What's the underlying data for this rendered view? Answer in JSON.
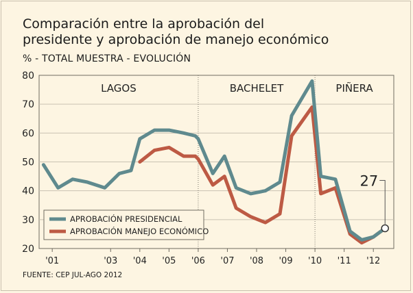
{
  "title_line1": "Comparación entre la aprobación del",
  "title_line2": "presidente y aprobación de manejo económico",
  "subtitle": "% - TOTAL MUESTRA - EVOLUCIÓN",
  "source": "FUENTE: CEP JUL-AGO 2012",
  "colors": {
    "presidential": "#5f8a8e",
    "economic": "#bd5a44",
    "background": "#fdf5e2"
  },
  "chart_data": {
    "type": "line",
    "title": "Comparación entre la aprobación del presidente y aprobación de manejo económico",
    "subtitle": "% - TOTAL MUESTRA - EVOLUCIÓN",
    "ylim": [
      20,
      80
    ],
    "yticks": [
      20,
      30,
      40,
      50,
      60,
      70,
      80
    ],
    "xlim": [
      2000.55,
      2012.7
    ],
    "x_tick_labels": [
      {
        "x": 2001,
        "label": "'01"
      },
      {
        "x": 2003,
        "label": "'03"
      },
      {
        "x": 2004,
        "label": "'04"
      },
      {
        "x": 2005,
        "label": "'05"
      },
      {
        "x": 2006,
        "label": "'06"
      },
      {
        "x": 2007,
        "label": "'07"
      },
      {
        "x": 2008,
        "label": "'08"
      },
      {
        "x": 2009,
        "label": "'09"
      },
      {
        "x": 2010,
        "label": "'10"
      },
      {
        "x": 2011,
        "label": "'11"
      },
      {
        "x": 2012,
        "label": "'12"
      }
    ],
    "periods": [
      {
        "label": "LAGOS",
        "start": 2000.55,
        "end": 2006.0
      },
      {
        "label": "BACHELET",
        "start": 2006.0,
        "end": 2010.0
      },
      {
        "label": "PIÑERA",
        "start": 2010.0,
        "end": 2012.7
      }
    ],
    "series": [
      {
        "name": "APROBACIÓN PRESIDENCIAL",
        "x": [
          2000.7,
          2001.2,
          2001.7,
          2002.2,
          2002.8,
          2003.3,
          2003.7,
          2004.0,
          2004.5,
          2005.0,
          2005.5,
          2005.9,
          2006.0,
          2006.5,
          2006.9,
          2007.3,
          2007.8,
          2008.3,
          2008.8,
          2009.2,
          2009.9,
          2010.2,
          2010.7,
          2011.2,
          2011.6,
          2012.0,
          2012.4
        ],
        "values": [
          49,
          41,
          44,
          43,
          41,
          46,
          47,
          58,
          61,
          61,
          60,
          59,
          58,
          46,
          52,
          41,
          39,
          40,
          43,
          66,
          78,
          45,
          44,
          26,
          23,
          24,
          27
        ]
      },
      {
        "name": "APROBACIÓN MANEJO ECONÓMICO",
        "x": [
          2004.0,
          2004.5,
          2005.0,
          2005.5,
          2005.9,
          2006.0,
          2006.5,
          2006.9,
          2007.3,
          2007.8,
          2008.3,
          2008.8,
          2009.2,
          2009.9,
          2010.2,
          2010.7,
          2011.2,
          2011.6,
          2012.0,
          2012.4
        ],
        "values": [
          50,
          54,
          55,
          52,
          52,
          51,
          42,
          45,
          34,
          31,
          29,
          32,
          59,
          69,
          39,
          41,
          25,
          22,
          24,
          27
        ]
      }
    ],
    "annotation": {
      "label": "27",
      "x": 2012.4,
      "value": 27
    },
    "legend": {
      "position": "bottom-left",
      "entries": [
        "APROBACIÓN PRESIDENCIAL",
        "APROBACIÓN MANEJO ECONÓMICO"
      ]
    }
  }
}
